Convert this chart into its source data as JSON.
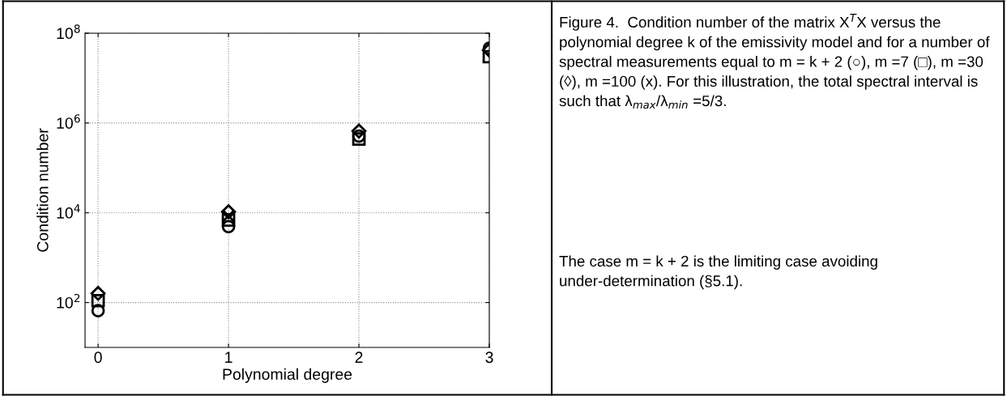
{
  "chart_data": {
    "type": "scatter",
    "xlabel": "Polynomial degree",
    "ylabel": "Condition number",
    "x": [
      0,
      1,
      2,
      3
    ],
    "xlim": [
      -0.1,
      3
    ],
    "xticks": [
      0,
      1,
      2,
      3
    ],
    "log": "y",
    "ylim": [
      10,
      100000000
    ],
    "yticks": [
      {
        "value": 100,
        "label": "10$^{2}$"
      },
      {
        "value": 10000,
        "label": "10$^{4}$"
      },
      {
        "value": 1000000,
        "label": "10$^{6}$"
      },
      {
        "value": 100000000,
        "label": "10$^{8}$"
      }
    ],
    "grid": true,
    "legend": false,
    "series": [
      {
        "color": "#000000",
        "marker": "circle",
        "values": [
          66,
          4900,
          510000,
          46000000
        ]
      },
      {
        "color": "#000000",
        "marker": "square",
        "values": [
          110,
          6900,
          440000,
          30000000
        ]
      },
      {
        "color": "#000000",
        "marker": "diamond",
        "values": [
          160,
          10500,
          660000,
          42000000
        ]
      },
      {
        "color": "#000000",
        "marker": "cross",
        "values": [
          null,
          8500,
          null,
          null
        ]
      }
    ],
    "annotations": [
      "Figure 4.  Condition number of the matrix X$^{T}$X versus the polynomial degree k of the emissivity model and for a number of spectral measurements equal to m = k + 2 (○), m =7 (□), m =30 (◊), m =100 (x). For this illustration, the total spectral interval is such that λ$_{max}$/λ$_{min}$ =5/3.",
      "The case m = k + 2 is the limiting case avoiding under-determination (§5.1)."
    ]
  }
}
